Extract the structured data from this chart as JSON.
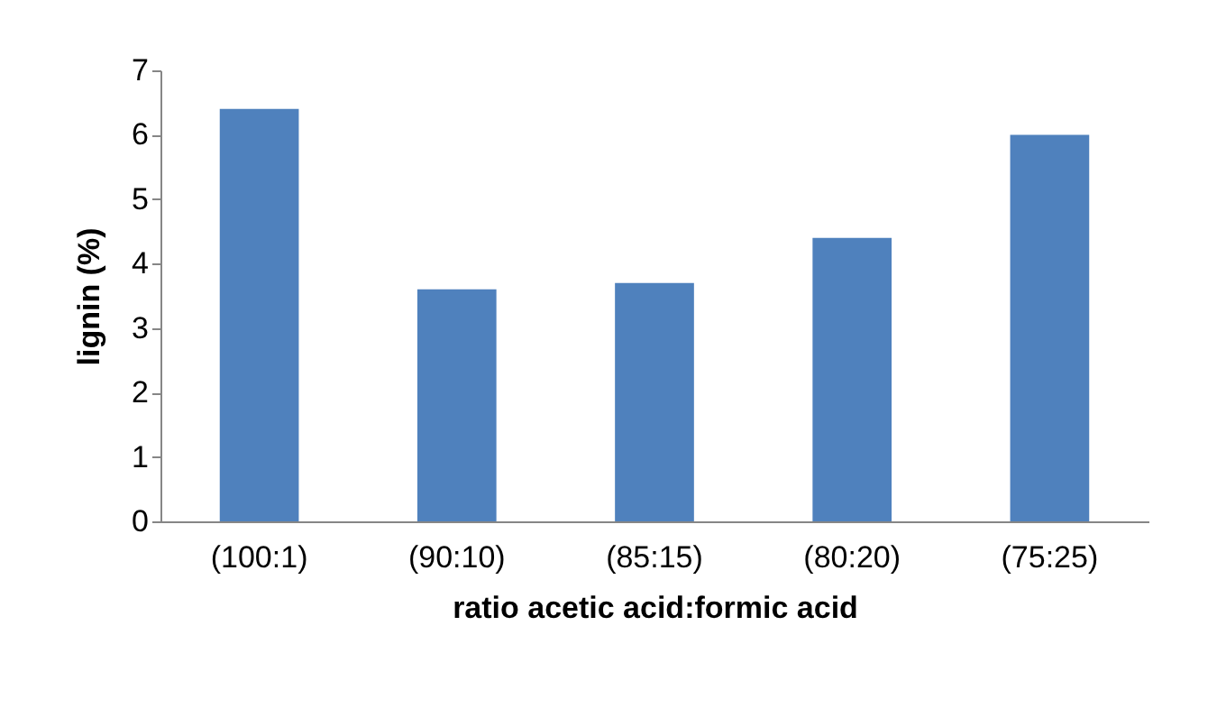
{
  "chart_data": {
    "type": "bar",
    "xlabel": "ratio acetic acid:formic acid",
    "ylabel": "lignin (%)",
    "categories": [
      "(100:1)",
      "(90:10)",
      "(85:15)",
      "(80:20)",
      "(75:25)"
    ],
    "values": [
      6.4,
      3.6,
      3.7,
      4.4,
      6.0
    ],
    "color": "#4f81bd",
    "ylim": [
      0,
      7
    ],
    "yticks": [
      0,
      1,
      2,
      3,
      4,
      5,
      6,
      7
    ],
    "grid": false
  }
}
